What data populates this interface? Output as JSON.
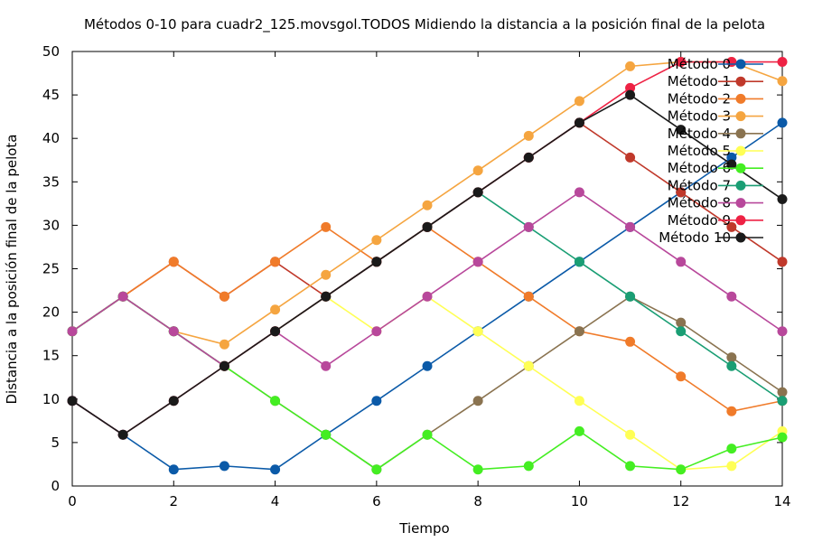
{
  "chart_data": {
    "type": "line",
    "title": "Métodos 0-10 para cuadr2_125.movsgol.TODOS Midiendo la distancia a la posición final de la pelota",
    "xlabel": "Tiempo",
    "ylabel": "Distancia a la posición final de la pelota",
    "xlim": [
      0,
      14
    ],
    "ylim": [
      0,
      50
    ],
    "xticks": [
      0,
      2,
      4,
      6,
      8,
      10,
      12,
      14
    ],
    "yticks": [
      0,
      5,
      10,
      15,
      20,
      25,
      30,
      35,
      40,
      45,
      50
    ],
    "grid": false,
    "legend_position": "top-right",
    "x": [
      0,
      1,
      2,
      3,
      4,
      5,
      6,
      7,
      8,
      9,
      10,
      11,
      12,
      13,
      14
    ],
    "series": [
      {
        "name": "Método 0",
        "color": "#0b5aa8",
        "values": [
          9.8,
          5.9,
          1.9,
          2.3,
          1.9,
          5.9,
          9.8,
          13.8,
          17.8,
          21.8,
          25.8,
          29.8,
          33.8,
          37.8,
          41.8
        ]
      },
      {
        "name": "Método 1",
        "color": "#c0392b",
        "values": [
          17.8,
          21.8,
          25.8,
          21.8,
          25.8,
          21.8,
          25.8,
          29.8,
          33.8,
          37.8,
          41.8,
          37.8,
          33.8,
          29.8,
          25.8
        ]
      },
      {
        "name": "Método 2",
        "color": "#f07b2a",
        "values": [
          17.8,
          21.8,
          25.8,
          21.8,
          25.8,
          29.8,
          25.8,
          29.8,
          25.8,
          21.8,
          17.8,
          16.6,
          12.6,
          8.6,
          9.8
        ]
      },
      {
        "name": "Método 3",
        "color": "#f5a540",
        "values": [
          17.8,
          21.8,
          17.8,
          16.3,
          20.3,
          24.3,
          28.3,
          32.3,
          36.3,
          40.3,
          44.3,
          48.3,
          48.8,
          48.8,
          46.6
        ]
      },
      {
        "name": "Método 4",
        "color": "#8a7350",
        "values": [
          17.8,
          21.8,
          17.8,
          13.8,
          9.8,
          5.9,
          1.9,
          5.9,
          9.8,
          13.8,
          17.8,
          21.8,
          18.8,
          14.8,
          10.8
        ]
      },
      {
        "name": "Método 5",
        "color": "#ffff55",
        "values": [
          17.8,
          21.8,
          17.8,
          13.8,
          17.8,
          21.8,
          17.8,
          21.8,
          17.8,
          13.8,
          9.8,
          5.9,
          1.9,
          2.3,
          6.3
        ]
      },
      {
        "name": "Método 6",
        "color": "#44ee22",
        "values": [
          17.8,
          21.8,
          17.8,
          13.8,
          9.8,
          5.9,
          1.9,
          5.9,
          1.9,
          2.3,
          6.3,
          2.3,
          1.9,
          4.3,
          5.6
        ]
      },
      {
        "name": "Método 7",
        "color": "#1a9e74",
        "values": [
          17.8,
          21.8,
          17.8,
          13.8,
          17.8,
          21.8,
          25.8,
          29.8,
          33.8,
          29.8,
          25.8,
          21.8,
          17.8,
          13.8,
          9.8
        ]
      },
      {
        "name": "Método 8",
        "color": "#b8489b",
        "values": [
          17.8,
          21.8,
          17.8,
          13.8,
          17.8,
          13.8,
          17.8,
          21.8,
          25.8,
          29.8,
          33.8,
          29.8,
          25.8,
          21.8,
          17.8
        ]
      },
      {
        "name": "Método 9",
        "color": "#ee2244",
        "values": [
          9.8,
          5.9,
          9.8,
          13.8,
          17.8,
          21.8,
          25.8,
          29.8,
          33.8,
          37.8,
          41.8,
          45.8,
          48.8,
          48.8,
          48.8
        ]
      },
      {
        "name": "Método 10",
        "color": "#1a1a1a",
        "values": [
          9.8,
          5.9,
          9.8,
          13.8,
          17.8,
          21.8,
          25.8,
          29.8,
          33.8,
          37.8,
          41.8,
          45.0,
          41.0,
          37.0,
          33.0
        ]
      }
    ]
  }
}
